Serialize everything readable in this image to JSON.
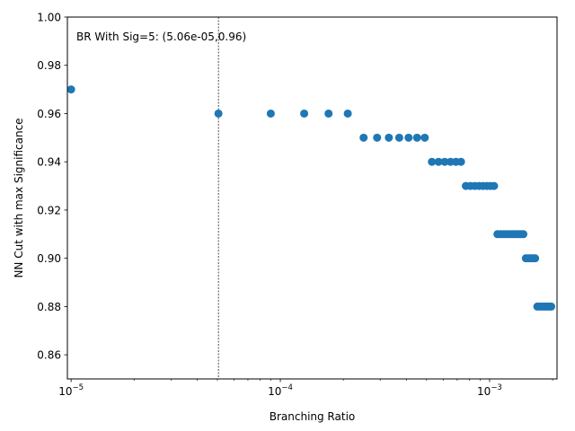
{
  "chart_data": {
    "type": "scatter",
    "xlabel": "Branching Ratio",
    "ylabel": "NN Cut with max Significance",
    "xscale": "log",
    "xlim": [
      9.6e-06,
      0.0021
    ],
    "ylim": [
      0.85,
      1.0
    ],
    "x_ticks": [
      {
        "value": 1e-05,
        "base": "10",
        "exp": "−5"
      },
      {
        "value": 0.0001,
        "base": "10",
        "exp": "−4"
      },
      {
        "value": 0.001,
        "base": "10",
        "exp": "−3"
      }
    ],
    "y_ticks": [
      "0.86",
      "0.88",
      "0.90",
      "0.92",
      "0.94",
      "0.96",
      "0.98",
      "1.00"
    ],
    "annotation": "BR With Sig=5: (5.06e-05,0.96)",
    "vline_x": 5.06e-05,
    "point_color": "#1f77b4",
    "points": [
      [
        1e-05,
        0.97
      ],
      [
        5.06e-05,
        0.96
      ],
      [
        9e-05,
        0.96
      ],
      [
        0.00013,
        0.96
      ],
      [
        0.00017,
        0.96
      ],
      [
        0.00021,
        0.96
      ],
      [
        0.00025,
        0.95
      ],
      [
        0.00029,
        0.95
      ],
      [
        0.00033,
        0.95
      ],
      [
        0.00037,
        0.95
      ],
      [
        0.00041,
        0.95
      ],
      [
        0.00045,
        0.95
      ],
      [
        0.00049,
        0.95
      ],
      [
        0.00053,
        0.94
      ],
      [
        0.00057,
        0.94
      ],
      [
        0.00061,
        0.94
      ],
      [
        0.00065,
        0.94
      ],
      [
        0.00069,
        0.94
      ],
      [
        0.00073,
        0.94
      ],
      [
        0.00077,
        0.93
      ],
      [
        0.00081,
        0.93
      ],
      [
        0.00085,
        0.93
      ],
      [
        0.00089,
        0.93
      ],
      [
        0.00093,
        0.93
      ],
      [
        0.00097,
        0.93
      ],
      [
        0.00101,
        0.93
      ],
      [
        0.00105,
        0.93
      ],
      [
        0.00109,
        0.91
      ],
      [
        0.00113,
        0.91
      ],
      [
        0.00117,
        0.91
      ],
      [
        0.00121,
        0.91
      ],
      [
        0.00125,
        0.91
      ],
      [
        0.00129,
        0.91
      ],
      [
        0.00133,
        0.91
      ],
      [
        0.00137,
        0.91
      ],
      [
        0.00141,
        0.91
      ],
      [
        0.00145,
        0.91
      ],
      [
        0.00149,
        0.9
      ],
      [
        0.00153,
        0.9
      ],
      [
        0.00157,
        0.9
      ],
      [
        0.00161,
        0.9
      ],
      [
        0.00165,
        0.9
      ],
      [
        0.00169,
        0.88
      ],
      [
        0.00173,
        0.88
      ],
      [
        0.00177,
        0.88
      ],
      [
        0.00181,
        0.88
      ],
      [
        0.00185,
        0.88
      ],
      [
        0.00189,
        0.88
      ],
      [
        0.00193,
        0.88
      ],
      [
        0.00197,
        0.88
      ]
    ]
  }
}
